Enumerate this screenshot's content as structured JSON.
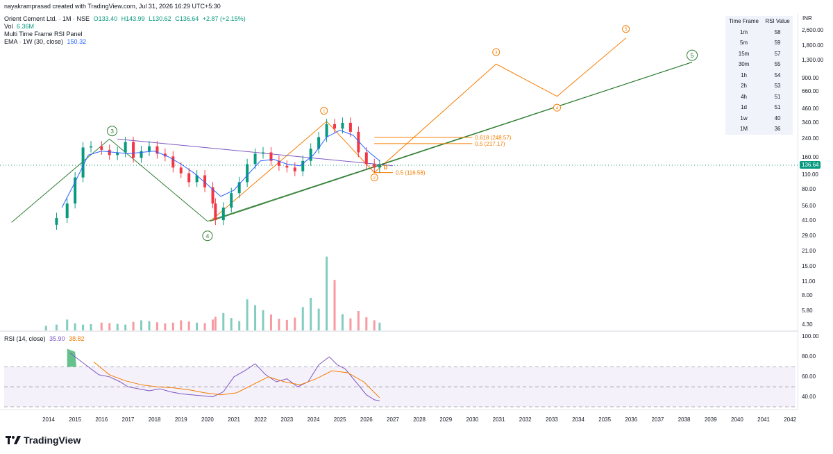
{
  "header": {
    "credit": "nayakramprasad created with TradingView.com, Jul 31, 2026 16:29 UTC+5:30",
    "symbol": "Orient Cement Ltd. · 1M · NSE",
    "ohlc": {
      "o": "O133.40",
      "h": "H143.99",
      "l": "L130.62",
      "c": "C136.64",
      "chg": "+2.87 (+2.15%)"
    },
    "vol_label": "Vol",
    "vol_value": "6.36M",
    "rsi_panel_label": "Multi Time Frame RSI Panel",
    "ema_label": "EMA · 1W (30, close)",
    "ema_value": "150.32"
  },
  "currency": "INR",
  "last_price": "136.64",
  "rsi_table": {
    "headers": [
      "Time Frame",
      "RSI Value"
    ],
    "rows": [
      [
        "1m",
        "58"
      ],
      [
        "5m",
        "59"
      ],
      [
        "15m",
        "57"
      ],
      [
        "30m",
        "55"
      ],
      [
        "1h",
        "54"
      ],
      [
        "2h",
        "53"
      ],
      [
        "4h",
        "51"
      ],
      [
        "1d",
        "51"
      ],
      [
        "1w",
        "40"
      ],
      [
        "1M",
        "36"
      ]
    ]
  },
  "rsi_legend": {
    "label": "RSI (14, close)",
    "rsi": "35.90",
    "ma": "38.82"
  },
  "fib_levels": [
    {
      "label": "0.618 (248.57)"
    },
    {
      "label": "0.5 (217.17)"
    },
    {
      "label": "0.5 (116.58)"
    }
  ],
  "wave_labels": {
    "primary": [
      "3",
      "4",
      "5"
    ],
    "minor": [
      "1",
      "2",
      "3",
      "4",
      "5"
    ],
    "d": "D"
  },
  "footer": {
    "brand": "TradingView"
  },
  "colors": {
    "up": "#089981",
    "down": "#f23645",
    "ema": "#2962ff",
    "rsi": "#7e57c2",
    "rsi_ma": "#f57c00",
    "wave_green": "#2e7d32",
    "wave_orange": "#f57c00"
  },
  "chart_data": {
    "type": "line",
    "title": "Orient Cement Ltd. · 1M · NSE",
    "price_scale": "log",
    "y_ticks": [
      "2,600.00",
      "1,800.00",
      "1,300.00",
      "900.00",
      "660.00",
      "460.00",
      "340.00",
      "240.00",
      "160.00",
      "110.00",
      "80.00",
      "56.00",
      "41.00",
      "29.00",
      "21.00",
      "15.00",
      "11.00",
      "8.00",
      "5.80",
      "4.30"
    ],
    "rsi_ticks": [
      "100.00",
      "80.00",
      "60.00",
      "40.00"
    ],
    "x_ticks": [
      "2014",
      "2015",
      "2016",
      "2017",
      "2018",
      "2019",
      "2020",
      "2021",
      "2022",
      "2023",
      "2024",
      "2025",
      "2026",
      "2027",
      "2028",
      "2029",
      "2030",
      "2031",
      "2032",
      "2033",
      "2034",
      "2035",
      "2036",
      "2037",
      "2038",
      "2039",
      "2040",
      "2041",
      "2042"
    ],
    "price_series": {
      "name": "Orient Cement Ltd.",
      "x": [
        2013.9,
        2014.3,
        2014.7,
        2015.0,
        2015.3,
        2015.6,
        2016.0,
        2016.3,
        2016.6,
        2016.9,
        2017.2,
        2017.5,
        2017.8,
        2018.1,
        2018.4,
        2018.7,
        2019.0,
        2019.3,
        2019.6,
        2019.9,
        2020.2,
        2020.3,
        2020.6,
        2020.9,
        2021.2,
        2021.5,
        2021.8,
        2022.1,
        2022.4,
        2022.7,
        2023.0,
        2023.3,
        2023.6,
        2023.9,
        2024.2,
        2024.5,
        2024.8,
        2025.1,
        2025.4,
        2025.7,
        2026.0,
        2026.3,
        2026.5
      ],
      "y": [
        38,
        44,
        60,
        105,
        200,
        205,
        190,
        170,
        180,
        225,
        160,
        185,
        205,
        175,
        165,
        130,
        115,
        95,
        110,
        85,
        60,
        42,
        55,
        75,
        95,
        140,
        175,
        180,
        150,
        135,
        130,
        120,
        150,
        195,
        250,
        330,
        300,
        340,
        280,
        180,
        140,
        130,
        137
      ]
    },
    "ema_series": {
      "x": [
        2014.5,
        2015.0,
        2015.5,
        2016.0,
        2016.5,
        2017.0,
        2017.5,
        2018.0,
        2018.5,
        2019.0,
        2019.5,
        2020.0,
        2020.5,
        2021.0,
        2021.5,
        2022.0,
        2022.5,
        2023.0,
        2023.5,
        2024.0,
        2024.5,
        2025.0,
        2025.5,
        2026.0,
        2026.5
      ],
      "y": [
        55,
        95,
        170,
        185,
        180,
        175,
        180,
        185,
        165,
        140,
        115,
        90,
        70,
        80,
        110,
        150,
        155,
        140,
        135,
        170,
        250,
        290,
        260,
        190,
        150
      ]
    },
    "volume_M": [
      1.2,
      1.5,
      2.8,
      1.8,
      1.5,
      1.6,
      2.0,
      1.9,
      1.7,
      1.5,
      2.2,
      2.6,
      2.4,
      2.1,
      1.8,
      2.0,
      2.6,
      2.3,
      2.0,
      1.9,
      2.8,
      3.5,
      4.5,
      3.2,
      2.4,
      8.0,
      6.5,
      5.2,
      4.1,
      3.0,
      2.7,
      3.3,
      6.0,
      8.4,
      5.6,
      19.0,
      13.0,
      4.2,
      3.1,
      5.0,
      3.4,
      2.6,
      2.0
    ],
    "rsi_series": {
      "name": "RSI",
      "x": [
        2014.8,
        2015.1,
        2015.5,
        2015.9,
        2016.3,
        2016.7,
        2017.0,
        2017.4,
        2017.8,
        2018.2,
        2018.6,
        2019.0,
        2019.4,
        2019.8,
        2020.2,
        2020.6,
        2021.0,
        2021.4,
        2021.8,
        2022.2,
        2022.6,
        2023.0,
        2023.4,
        2023.8,
        2024.2,
        2024.6,
        2024.9,
        2025.2,
        2025.6,
        2026.0,
        2026.3,
        2026.5
      ],
      "y": [
        84,
        78,
        70,
        62,
        60,
        55,
        50,
        48,
        46,
        48,
        45,
        43,
        42,
        41,
        40,
        45,
        60,
        66,
        73,
        62,
        55,
        58,
        50,
        55,
        72,
        80,
        72,
        68,
        55,
        42,
        37,
        36
      ]
    },
    "rsi_ma_series": {
      "name": "RSI MA",
      "x": [
        2015.7,
        2016.3,
        2016.9,
        2017.5,
        2018.1,
        2018.7,
        2019.3,
        2019.9,
        2020.5,
        2021.1,
        2021.7,
        2022.3,
        2022.9,
        2023.5,
        2024.1,
        2024.7,
        2025.3,
        2025.9,
        2026.5
      ],
      "y": [
        75,
        62,
        56,
        52,
        50,
        49,
        47,
        44,
        42,
        44,
        52,
        60,
        55,
        52,
        58,
        66,
        64,
        55,
        39
      ]
    },
    "rsi_bands": [
      70,
      50,
      30
    ],
    "trendlines": [
      {
        "name": "primary wave",
        "x": [
          2012.6,
          2016.3,
          2020.0,
          2038.3
        ],
        "y": [
          40,
          240,
          41,
          1250
        ]
      },
      {
        "name": "minor wave",
        "x": [
          2020.1,
          2024.5,
          2026.3,
          2030.9,
          2033.2,
          2035.8
        ],
        "y": [
          41,
          350,
          116.58,
          1200,
          600,
          2100
        ]
      },
      {
        "name": "upper trendline",
        "x": [
          2016.6,
          2027.0
        ],
        "y": [
          240,
          135
        ]
      }
    ]
  }
}
